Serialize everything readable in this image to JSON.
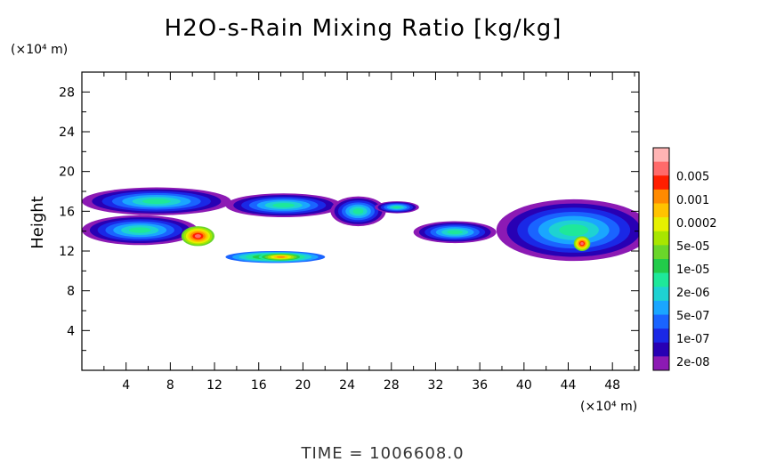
{
  "chart_data": {
    "type": "heatmap",
    "title": "H2O-s-Rain Mixing Ratio [kg/kg]",
    "ylabel": "Height",
    "y_unit": "(×10⁴ m)",
    "x_unit": "(×10⁴ m)",
    "x_ticks": [
      4,
      8,
      12,
      16,
      20,
      24,
      28,
      32,
      36,
      40,
      44,
      48
    ],
    "y_ticks": [
      4,
      8,
      12,
      16,
      20,
      24,
      28
    ],
    "xlim": [
      0,
      50.4
    ],
    "ylim": [
      0,
      30
    ],
    "footer": "TIME = 1006608.0",
    "legend": {
      "labels": [
        "0.005",
        "0.001",
        "0.0002",
        "5e-05",
        "1e-05",
        "2e-06",
        "5e-07",
        "1e-07",
        "2e-08"
      ],
      "colors": [
        "#ffb4b4",
        "#ff6a6a",
        "#ff1e00",
        "#ff8a00",
        "#ffc300",
        "#e6f000",
        "#a8e600",
        "#6ad62a",
        "#22cc4a",
        "#1ee89a",
        "#1ed2d2",
        "#1aa6ff",
        "#1a64ff",
        "#1a28e6",
        "#2800b4",
        "#8c1ab4"
      ]
    },
    "fields": [
      {
        "x": [
          0,
          13.5
        ],
        "y": [
          15.6,
          18.4
        ],
        "level": 0
      },
      {
        "x": [
          0,
          10.5
        ],
        "y": [
          12.6,
          15.6
        ],
        "level": 0
      },
      {
        "x": [
          13.0,
          23.5
        ],
        "y": [
          15.4,
          17.8
        ],
        "level": 0
      },
      {
        "x": [
          22.5,
          27.5
        ],
        "y": [
          14.5,
          17.5
        ],
        "level": 0
      },
      {
        "x": [
          13.0,
          22.0
        ],
        "y": [
          10.8,
          12.0
        ],
        "level": 3
      },
      {
        "x": [
          26.5,
          30.5
        ],
        "y": [
          15.8,
          17.0
        ],
        "level": 0
      },
      {
        "x": [
          30.0,
          37.5
        ],
        "y": [
          12.8,
          15.0
        ],
        "level": 0
      },
      {
        "x": [
          37.5,
          51.5
        ],
        "y": [
          11.0,
          17.2
        ],
        "level": 0
      },
      {
        "x": [
          9.0,
          12.0
        ],
        "y": [
          12.5,
          14.5
        ],
        "level": 8
      },
      {
        "x": [
          44.5,
          46.0
        ],
        "y": [
          12.0,
          13.5
        ],
        "level": 8
      },
      {
        "x": [
          16.0,
          20.0
        ],
        "y": [
          11.0,
          11.8
        ],
        "level": 6
      }
    ]
  },
  "colors": {
    "background": "#ffffff",
    "axis": "#000000"
  }
}
